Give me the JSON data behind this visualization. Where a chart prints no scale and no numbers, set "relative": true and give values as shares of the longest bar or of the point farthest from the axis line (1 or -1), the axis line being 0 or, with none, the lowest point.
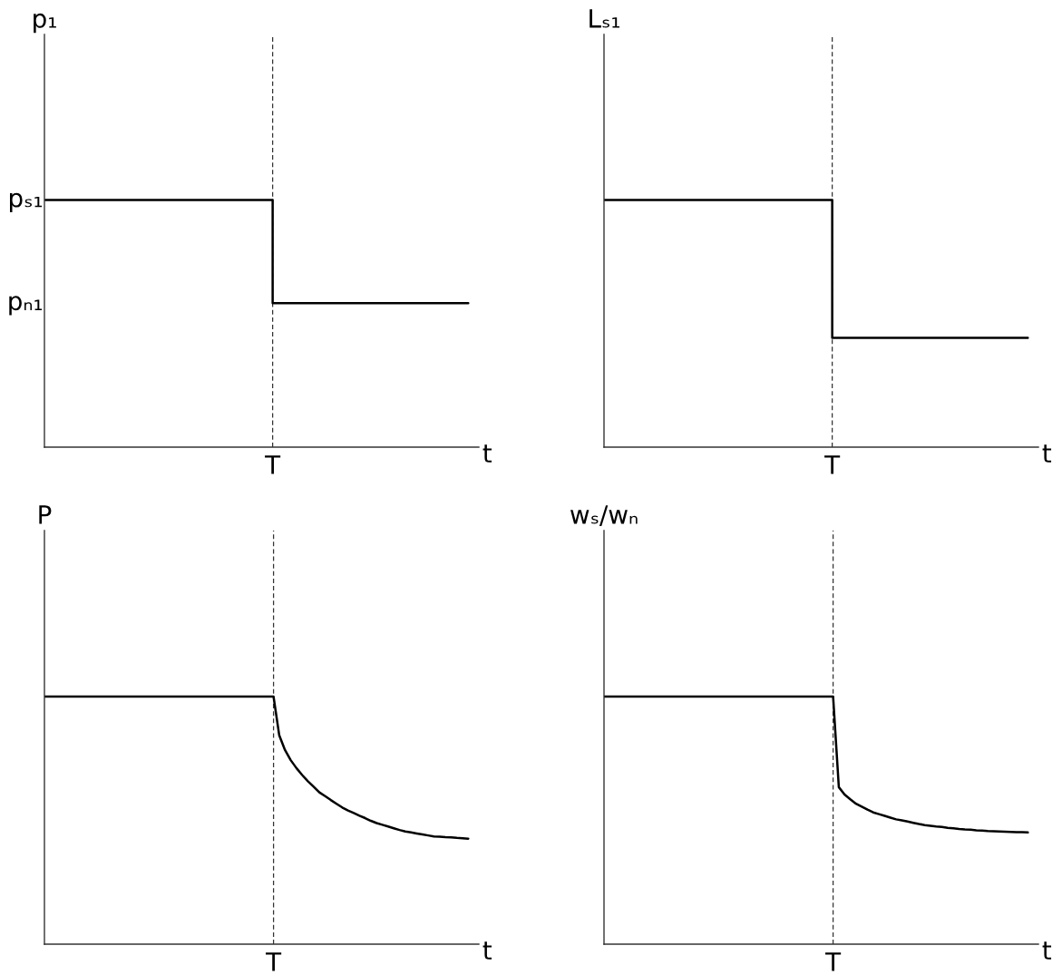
{
  "chart_data": [
    {
      "type": "step",
      "xlabel": "t",
      "ylabel": "p₁",
      "relative": true,
      "categories": [
        null,
        null,
        null,
        null,
        null,
        null,
        null,
        null,
        null,
        null,
        null,
        null,
        null,
        null
      ],
      "series": [
        {
          "color": "#000000",
          "values": [
            1,
            1,
            1,
            1,
            1,
            1,
            1,
            0.583,
            0.583,
            0.583,
            0.583,
            0.583,
            0.583,
            0.583
          ]
        }
      ],
      "annotations": [
        "pₛ₁",
        "pₙ₁",
        "T"
      ]
    },
    {
      "type": "step",
      "xlabel": "t",
      "ylabel": "Lₛ₁",
      "relative": true,
      "categories": [
        null,
        null,
        null,
        null,
        null,
        null,
        null,
        null,
        null,
        null,
        null,
        null,
        null,
        null
      ],
      "series": [
        {
          "color": "#000000",
          "values": [
            1,
            1,
            1,
            1,
            1,
            1,
            1,
            0.442,
            0.442,
            0.442,
            0.442,
            0.442,
            0.442,
            0.442
          ]
        }
      ],
      "annotations": [
        "T"
      ]
    },
    {
      "type": "line",
      "xlabel": "t",
      "ylabel": "P",
      "relative": true,
      "categories": [
        null,
        null,
        null,
        null,
        null,
        null,
        null,
        null,
        null,
        null,
        null,
        null,
        null,
        null,
        null,
        null,
        null,
        null,
        null,
        null,
        null,
        null,
        null,
        null,
        null,
        null,
        null,
        null,
        null,
        null,
        null,
        null,
        null,
        null,
        null,
        null,
        null,
        null,
        null,
        null,
        null,
        null,
        null,
        null,
        null,
        null,
        null,
        null,
        null,
        null,
        null,
        null,
        null,
        null,
        null,
        null,
        null,
        null,
        null,
        null,
        null,
        null,
        null,
        null,
        null,
        null,
        null,
        null,
        null,
        null,
        null,
        null,
        null,
        null,
        null
      ],
      "series": [
        {
          "color": "#000000",
          "values": [
            1,
            1,
            1,
            1,
            1,
            1,
            1,
            1,
            1,
            1,
            1,
            1,
            1,
            1,
            1,
            1,
            1,
            1,
            1,
            1,
            1,
            1,
            1,
            1,
            1,
            1,
            1,
            1,
            1,
            1,
            1,
            1,
            1,
            1,
            1,
            1,
            1,
            1,
            1,
            1,
            1,
            0.843,
            0.784,
            0.743,
            0.711,
            0.683,
            0.658,
            0.636,
            0.613,
            0.598,
            0.582,
            0.567,
            0.552,
            0.54,
            0.53,
            0.519,
            0.509,
            0.498,
            0.489,
            0.482,
            0.475,
            0.468,
            0.461,
            0.455,
            0.451,
            0.447,
            0.443,
            0.439,
            0.435,
            0.434,
            0.432,
            0.431,
            0.429,
            0.428,
            0.426
          ]
        }
      ],
      "annotations": [
        "T"
      ]
    },
    {
      "type": "line",
      "xlabel": "t",
      "ylabel": "wₛ/wₙ",
      "relative": true,
      "categories": [
        null,
        null,
        null,
        null,
        null,
        null,
        null,
        null,
        null,
        null,
        null,
        null,
        null,
        null,
        null,
        null,
        null,
        null,
        null,
        null,
        null,
        null,
        null,
        null,
        null,
        null,
        null,
        null,
        null,
        null,
        null,
        null,
        null,
        null,
        null,
        null,
        null,
        null,
        null,
        null,
        null,
        null,
        null,
        null,
        null,
        null,
        null,
        null,
        null,
        null,
        null,
        null,
        null,
        null,
        null,
        null,
        null,
        null,
        null,
        null,
        null,
        null,
        null,
        null,
        null,
        null,
        null,
        null,
        null,
        null,
        null,
        null,
        null,
        null,
        null
      ],
      "series": [
        {
          "color": "#000000",
          "values": [
            1,
            1,
            1,
            1,
            1,
            1,
            1,
            1,
            1,
            1,
            1,
            1,
            1,
            1,
            1,
            1,
            1,
            1,
            1,
            1,
            1,
            1,
            1,
            1,
            1,
            1,
            1,
            1,
            1,
            1,
            1,
            1,
            1,
            1,
            1,
            1,
            1,
            1,
            1,
            1,
            1,
            0.634,
            0.604,
            0.585,
            0.567,
            0.555,
            0.543,
            0.532,
            0.525,
            0.518,
            0.511,
            0.504,
            0.5,
            0.495,
            0.49,
            0.485,
            0.481,
            0.478,
            0.475,
            0.473,
            0.47,
            0.468,
            0.465,
            0.463,
            0.462,
            0.46,
            0.459,
            0.457,
            0.456,
            0.455,
            0.454,
            0.453,
            0.452,
            0.452,
            0.451
          ]
        }
      ],
      "annotations": [
        "T"
      ]
    }
  ]
}
